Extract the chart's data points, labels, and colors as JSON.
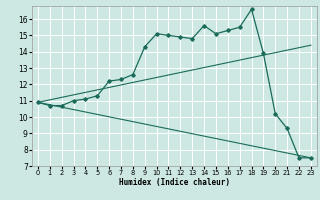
{
  "title": "",
  "xlabel": "Humidex (Indice chaleur)",
  "bg_color": "#cde8e3",
  "line_color": "#1a6b5a",
  "grid_color": "#ffffff",
  "xlim": [
    -0.5,
    23.5
  ],
  "ylim": [
    7,
    16.8
  ],
  "yticks": [
    7,
    8,
    9,
    10,
    11,
    12,
    13,
    14,
    15,
    16
  ],
  "xticks": [
    0,
    1,
    2,
    3,
    4,
    5,
    6,
    7,
    8,
    9,
    10,
    11,
    12,
    13,
    14,
    15,
    16,
    17,
    18,
    19,
    20,
    21,
    22,
    23
  ],
  "main_x": [
    0,
    1,
    2,
    3,
    4,
    5,
    6,
    7,
    8,
    9,
    10,
    11,
    12,
    13,
    14,
    15,
    16,
    17,
    18,
    19,
    20,
    21,
    22,
    23
  ],
  "main_y": [
    10.9,
    10.7,
    10.7,
    11.0,
    11.1,
    11.3,
    12.2,
    12.3,
    12.6,
    14.3,
    15.1,
    15.0,
    14.9,
    14.8,
    15.6,
    15.1,
    15.3,
    15.5,
    16.6,
    13.9,
    10.2,
    9.3,
    7.5,
    7.5
  ],
  "line1_x": [
    0,
    23
  ],
  "line1_y": [
    10.9,
    14.4
  ],
  "line2_x": [
    0,
    23
  ],
  "line2_y": [
    10.9,
    7.5
  ]
}
